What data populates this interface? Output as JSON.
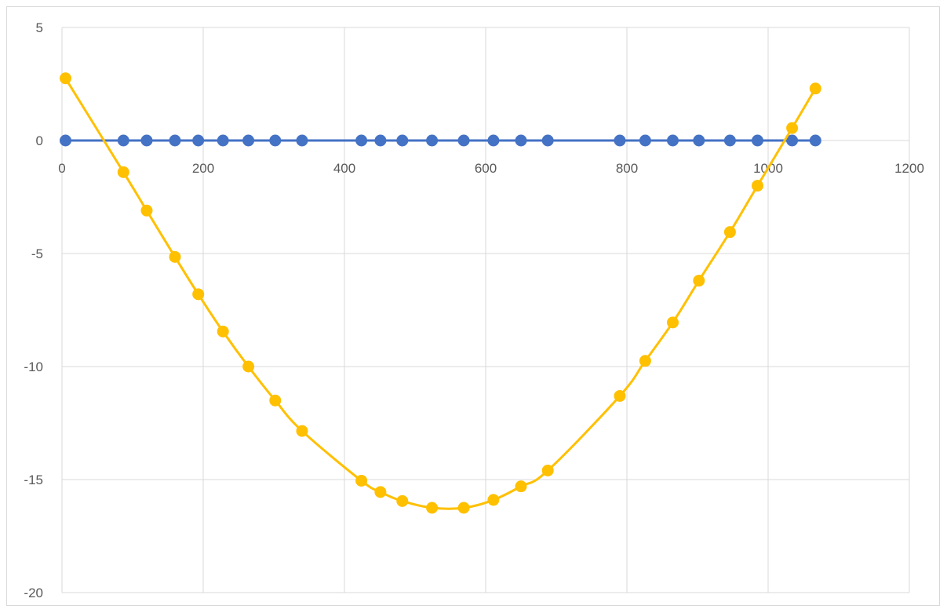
{
  "chart_data": {
    "type": "scatter",
    "xlim": [
      0,
      1200
    ],
    "ylim": [
      -20,
      5
    ],
    "x_ticks": [
      "0",
      "200",
      "400",
      "600",
      "800",
      "1000",
      "1200"
    ],
    "y_ticks": [
      "5",
      "0",
      "-5",
      "-10",
      "-15",
      "-20"
    ],
    "x_tick_values": [
      0,
      200,
      400,
      600,
      800,
      1000,
      1200
    ],
    "y_tick_values": [
      5,
      0,
      -5,
      -10,
      -15,
      -20
    ],
    "grid": true,
    "legend": "none",
    "series": [
      {
        "color": "#4472C4",
        "x": [
          5,
          87,
          120,
          160,
          193,
          228,
          264,
          302,
          340,
          424,
          451,
          482,
          524,
          569,
          611,
          650,
          688,
          790,
          826,
          865,
          902,
          946,
          985,
          1034,
          1067
        ],
        "y": [
          0,
          0,
          0,
          0,
          0,
          0,
          0,
          0,
          0,
          0,
          0,
          0,
          0,
          0,
          0,
          0,
          0,
          0,
          0,
          0,
          0,
          0,
          0,
          0,
          0
        ]
      },
      {
        "color": "#FFC000",
        "x": [
          5,
          87,
          120,
          160,
          193,
          228,
          264,
          302,
          340,
          424,
          451,
          482,
          524,
          569,
          611,
          650,
          688,
          790,
          826,
          865,
          902,
          946,
          985,
          1034,
          1067
        ],
        "y": [
          2.75,
          -1.4,
          -3.1,
          -5.15,
          -6.8,
          -8.45,
          -10.0,
          -11.5,
          -12.85,
          -15.05,
          -15.55,
          -15.95,
          -16.25,
          -16.25,
          -15.9,
          -15.3,
          -14.6,
          -11.3,
          -9.75,
          -8.05,
          -6.2,
          -4.05,
          -2.0,
          0.55,
          2.3
        ]
      }
    ]
  }
}
